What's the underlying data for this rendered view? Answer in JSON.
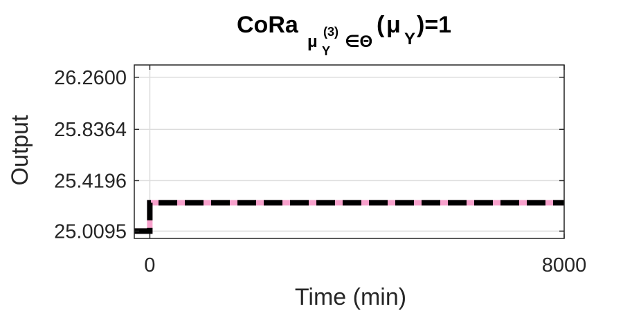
{
  "chart_data": {
    "type": "line",
    "title": {
      "prefix": "CoRa",
      "sub_mu": "μ",
      "sub_Y": "Y",
      "sub_sup": "(3)",
      "sub_in_theta": "∈Θ",
      "paren_open": "(",
      "mu": "μ",
      "Y": "Y",
      "suffix": ")=1"
    },
    "xlabel": "Time (min)",
    "ylabel": "Output",
    "xlim": [
      -300,
      8000
    ],
    "ylim": [
      24.95,
      26.36
    ],
    "x_tick_values": [
      0,
      8000
    ],
    "x_tick_labels": [
      "0",
      "8000"
    ],
    "y_tick_values": [
      25.0095,
      25.4196,
      25.8364,
      26.26
    ],
    "y_tick_labels": [
      "25.0095",
      "25.4196",
      "25.8364",
      "26.2600"
    ],
    "grid": true,
    "series": [
      {
        "color": "#000000",
        "style": "dashed",
        "x": [
          -300,
          0,
          0,
          8000
        ],
        "y": [
          25.0095,
          25.0095,
          25.24,
          25.24
        ]
      },
      {
        "color": "#f7a1cc",
        "style": "solid",
        "x": [
          -300,
          0,
          0,
          8000
        ],
        "y": [
          25.0095,
          25.0095,
          25.24,
          25.24
        ]
      }
    ]
  }
}
